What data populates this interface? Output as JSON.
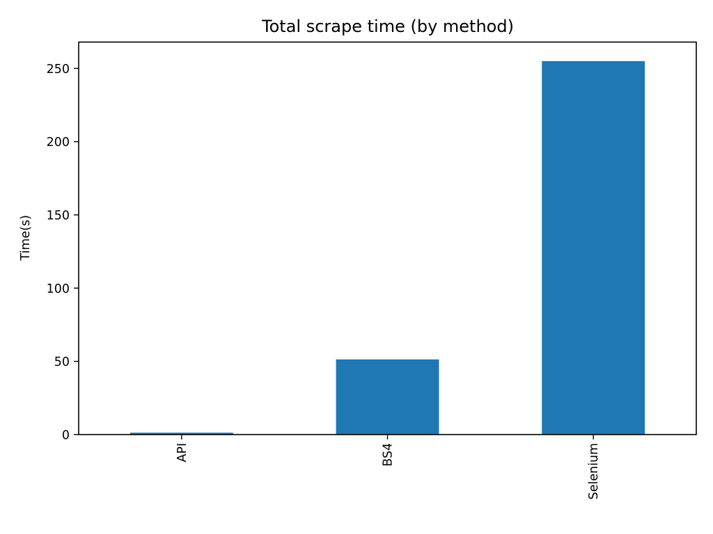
{
  "chart_data": {
    "type": "bar",
    "title": "Total scrape time (by method)",
    "xlabel": "",
    "ylabel": "Time(s)",
    "categories": [
      "API",
      "BS4",
      "Selenium"
    ],
    "values": [
      1.3,
      51.3,
      255.0
    ],
    "ylim": [
      0,
      268
    ],
    "yticks": [
      0,
      50,
      100,
      150,
      200,
      250
    ],
    "ytick_labels": [
      "0",
      "50",
      "100",
      "150",
      "200",
      "250"
    ],
    "xtick_rotation": "vertical",
    "grid": false,
    "legend": "none",
    "bar_color": "#1f77b4"
  }
}
